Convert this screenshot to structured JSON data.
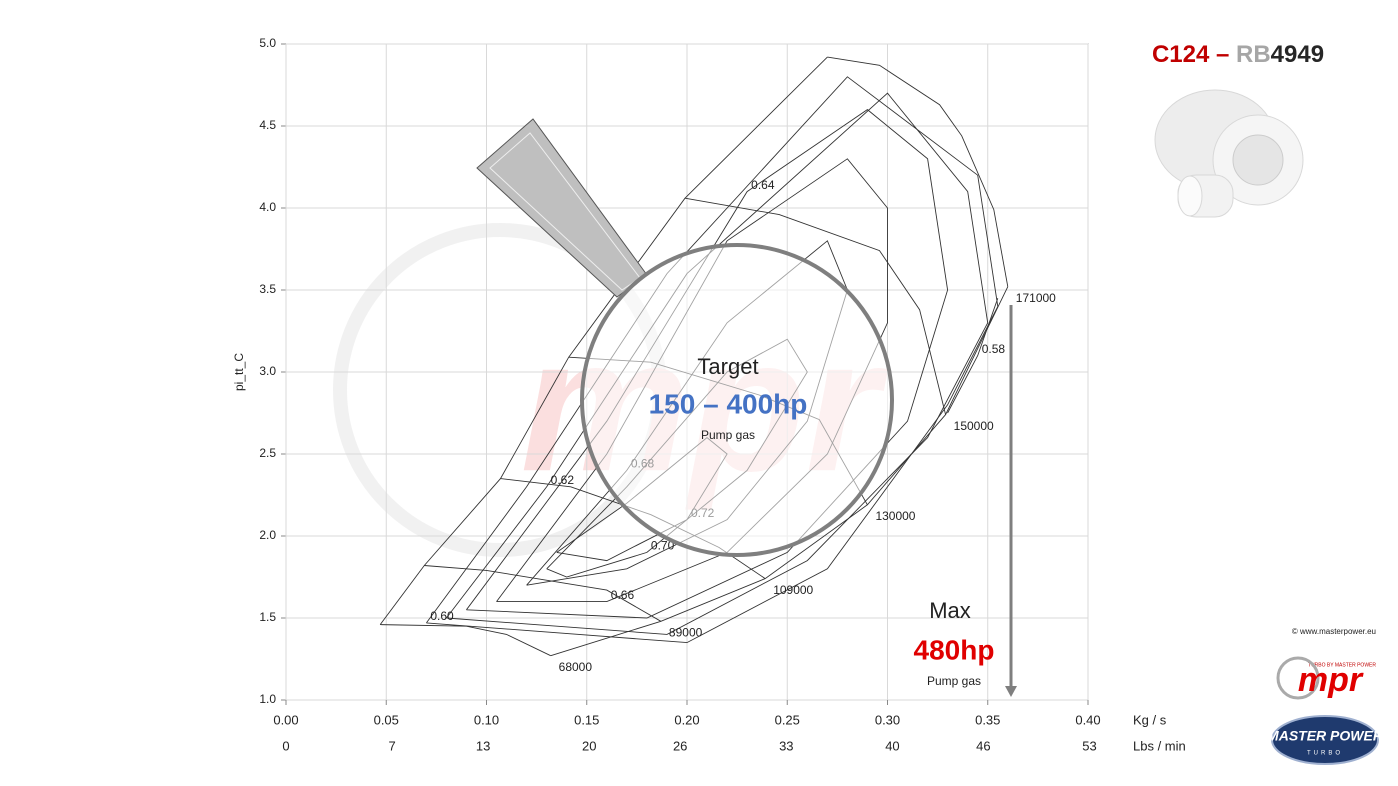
{
  "chart_data": {
    "type": "compressor-map",
    "title_parts": [
      "C124 – ",
      "RB",
      "4949"
    ],
    "title_colors": [
      "#c00000",
      "#a6a6a6",
      "#262626"
    ],
    "y_label": "pi_tt_C",
    "x_label": "Kg / s",
    "x2_label": "Lbs / min",
    "xlim": [
      0,
      0.4
    ],
    "xticks": [
      {
        "value": 0,
        "label": "0.00"
      },
      {
        "value": 0.05,
        "label": "0.05"
      },
      {
        "value": 0.1,
        "label": "0.10"
      },
      {
        "value": 0.15,
        "label": "0.15"
      },
      {
        "value": 0.2,
        "label": "0.20"
      },
      {
        "value": 0.25,
        "label": "0.25"
      },
      {
        "value": 0.3,
        "label": "0.30"
      },
      {
        "value": 0.35,
        "label": "0.35"
      },
      {
        "value": 0.4,
        "label": "0.40"
      }
    ],
    "x2lim": [
      0,
      52.9
    ],
    "x2ticks": [
      0,
      7,
      13,
      20,
      26,
      33,
      40,
      46,
      53
    ],
    "ylim": [
      1,
      5
    ],
    "yticks": [
      {
        "value": 1,
        "label": "1.0"
      },
      {
        "value": 1.5,
        "label": "1.5"
      },
      {
        "value": 2,
        "label": "2.0"
      },
      {
        "value": 2.5,
        "label": "2.5"
      },
      {
        "value": 3,
        "label": "3.0"
      },
      {
        "value": 3.5,
        "label": "3.5"
      },
      {
        "value": 4,
        "label": "4.0"
      },
      {
        "value": 4.5,
        "label": "4.5"
      },
      {
        "value": 5,
        "label": "5.0"
      }
    ],
    "grid": true,
    "surge_line": {
      "x": [
        0.047,
        0.069,
        0.107,
        0.141,
        0.199,
        0.27
      ],
      "values": [
        1.46,
        1.82,
        2.35,
        3.09,
        4.06,
        4.92
      ]
    },
    "choke_line": {
      "x": [
        0.36,
        0.329,
        0.29,
        0.239,
        0.187,
        0.132
      ],
      "values": [
        3.52,
        2.74,
        2.19,
        1.74,
        1.48,
        1.27
      ]
    },
    "speed_lines": [
      {
        "name": "68000",
        "x": [
          0.047,
          0.09,
          0.11,
          0.132
        ],
        "values": [
          1.46,
          1.45,
          1.4,
          1.27
        ]
      },
      {
        "name": "89000",
        "x": [
          0.069,
          0.1,
          0.16,
          0.187
        ],
        "values": [
          1.82,
          1.79,
          1.67,
          1.48
        ]
      },
      {
        "name": "109000",
        "x": [
          0.107,
          0.142,
          0.182,
          0.216,
          0.239
        ],
        "values": [
          2.35,
          2.3,
          2.13,
          1.93,
          1.74
        ]
      },
      {
        "name": "130000",
        "x": [
          0.141,
          0.182,
          0.236,
          0.266,
          0.29
        ],
        "values": [
          3.09,
          3.06,
          2.86,
          2.71,
          2.19
        ]
      },
      {
        "name": "150000",
        "x": [
          0.199,
          0.246,
          0.296,
          0.316,
          0.329
        ],
        "values": [
          4.06,
          3.96,
          3.74,
          3.38,
          2.74
        ]
      },
      {
        "name": "171000",
        "x": [
          0.27,
          0.296,
          0.326,
          0.337,
          0.353,
          0.36
        ],
        "values": [
          4.92,
          4.87,
          4.63,
          4.44,
          3.99,
          3.52
        ]
      }
    ],
    "efficiency": [
      {
        "name": "0.72",
        "x": [
          0.135,
          0.17,
          0.21,
          0.22,
          0.2,
          0.16,
          0.135
        ],
        "values": [
          1.9,
          2.2,
          2.6,
          2.5,
          2.1,
          1.85,
          1.9
        ]
      },
      {
        "name": "0.70",
        "x": [
          0.13,
          0.17,
          0.22,
          0.25,
          0.26,
          0.23,
          0.18,
          0.14,
          0.13
        ],
        "values": [
          1.8,
          2.3,
          3.0,
          3.2,
          3.0,
          2.4,
          1.9,
          1.75,
          1.8
        ]
      },
      {
        "name": "0.68",
        "x": [
          0.12,
          0.17,
          0.22,
          0.27,
          0.28,
          0.26,
          0.22,
          0.17,
          0.12
        ],
        "values": [
          1.7,
          2.4,
          3.3,
          3.8,
          3.5,
          2.7,
          2.1,
          1.8,
          1.7
        ]
      },
      {
        "name": "0.66",
        "x": [
          0.105,
          0.16,
          0.22,
          0.28,
          0.3,
          0.3,
          0.27,
          0.22,
          0.16,
          0.105
        ],
        "values": [
          1.6,
          2.5,
          3.8,
          4.3,
          4.0,
          3.3,
          2.5,
          1.9,
          1.6,
          1.6
        ]
      },
      {
        "name": "0.64",
        "x": [
          0.09,
          0.16,
          0.23,
          0.29,
          0.32,
          0.33,
          0.31,
          0.25,
          0.18,
          0.09
        ],
        "values": [
          1.55,
          2.7,
          4.1,
          4.6,
          4.3,
          3.5,
          2.7,
          1.9,
          1.5,
          1.55
        ]
      },
      {
        "name": "0.62",
        "x": [
          0.08,
          0.13,
          0.2,
          0.3,
          0.34,
          0.35,
          0.32,
          0.26,
          0.19,
          0.08
        ],
        "values": [
          1.5,
          2.3,
          3.6,
          4.7,
          4.1,
          3.3,
          2.6,
          1.85,
          1.4,
          1.5
        ]
      },
      {
        "name": "0.60",
        "x": [
          0.07,
          0.12,
          0.19,
          0.28,
          0.345,
          0.355,
          0.33,
          0.27,
          0.2,
          0.07
        ],
        "values": [
          1.47,
          2.3,
          3.6,
          4.8,
          4.2,
          3.4,
          2.8,
          1.8,
          1.35,
          1.47
        ]
      },
      {
        "name": "0.58",
        "x": [
          0.33,
          0.345,
          0.355
        ],
        "values": [
          2.75,
          3.1,
          3.45
        ]
      }
    ],
    "annotations": {
      "target": "Target",
      "target_range": "150 – 400hp",
      "target_fuel": "Pump gas",
      "max": "Max",
      "max_power": "480hp",
      "max_fuel": "Pump gas"
    },
    "copyright": "© www.masterpower.eu",
    "logo_mpr": "mpr",
    "logo_mpr_tag": "TURBO BY MASTER POWER",
    "logo_master": "MASTER POWER",
    "logo_master_sub": "TURBO"
  }
}
